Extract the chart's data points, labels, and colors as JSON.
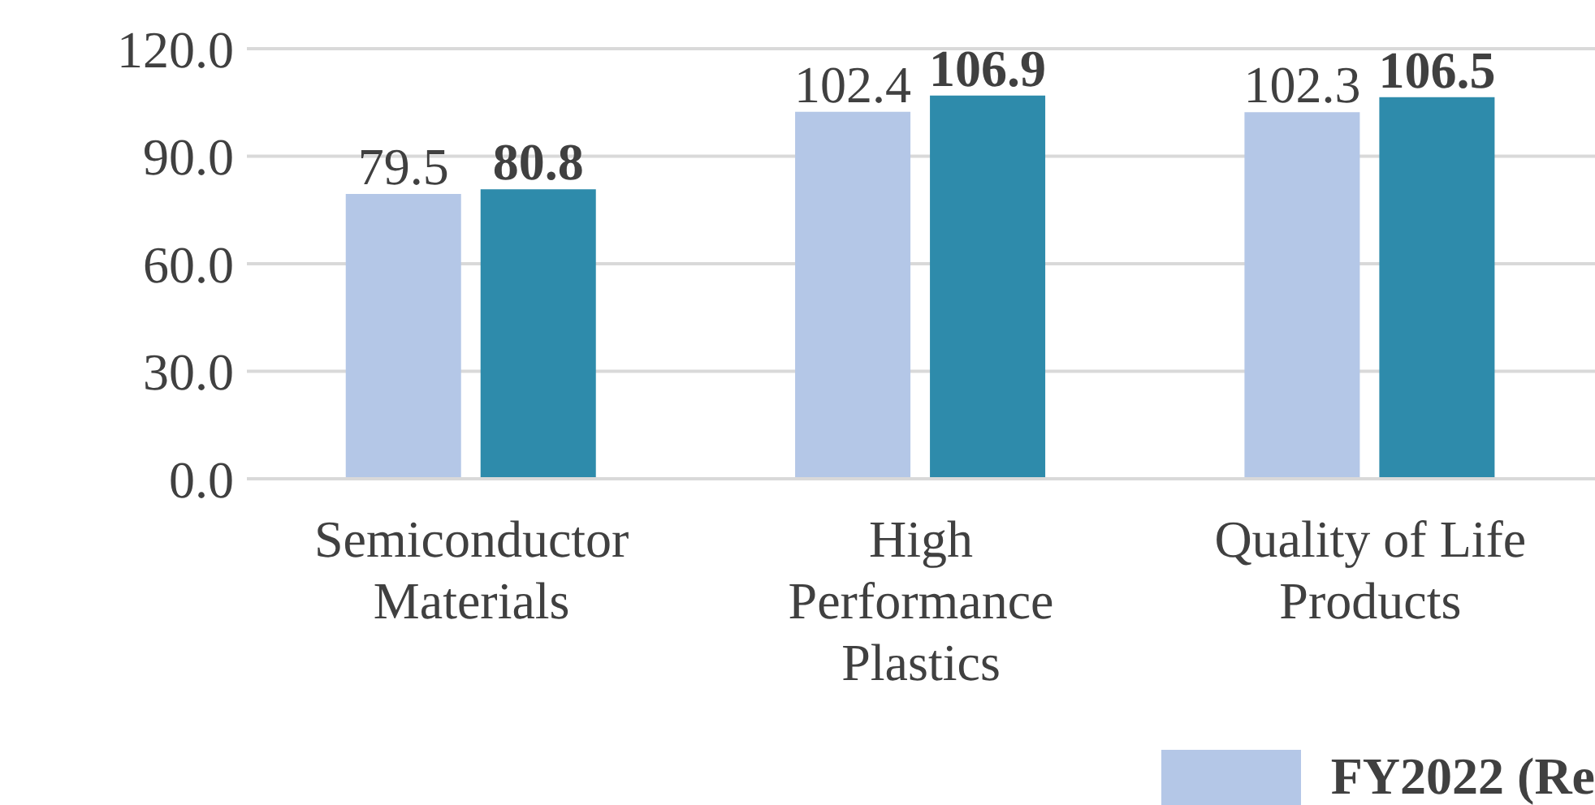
{
  "chart_data": {
    "type": "bar",
    "categories": [
      "Semiconductor Materials",
      "High Performance Plastics",
      "Quality of Life Products"
    ],
    "series": [
      {
        "name": "FY2022 (Re",
        "color": "#b4c7e7",
        "values": [
          79.5,
          102.4,
          102.3
        ]
      },
      {
        "color": "#2e8bab",
        "values": [
          80.8,
          106.9,
          106.5
        ]
      }
    ],
    "ylim": [
      0,
      120
    ],
    "yticks": [
      {
        "value": 0,
        "label": "0.0"
      },
      {
        "value": 30,
        "label": "30.0"
      },
      {
        "value": 60,
        "label": "60.0"
      },
      {
        "value": 90,
        "label": "90.0"
      },
      {
        "value": 120,
        "label": "120.0"
      }
    ],
    "grid": "y",
    "legend": "bottom right",
    "data_labels": true
  }
}
